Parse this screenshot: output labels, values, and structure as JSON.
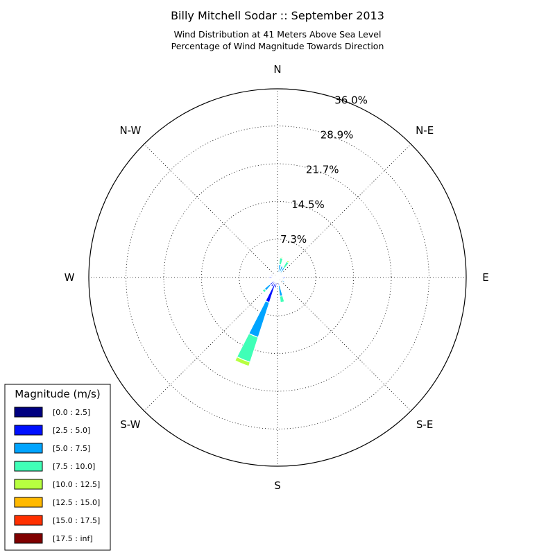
{
  "chart_data": {
    "type": "windrose",
    "title": "Billy Mitchell Sodar :: September 2013",
    "subtitle_lines": [
      "Wind Distribution at 41 Meters Above Sea Level",
      "Percentage of Wind Magnitude Towards Direction"
    ],
    "directions": [
      "N",
      "N-E",
      "E",
      "S-E",
      "S",
      "S-W",
      "W",
      "N-W"
    ],
    "radial_tick_labels": [
      "7.3%",
      "14.5%",
      "21.7%",
      "28.9%",
      "36.0%"
    ],
    "radial_ticks": [
      7.3,
      14.5,
      21.7,
      28.9,
      36.0
    ],
    "rmax": 36.0,
    "legend": {
      "title": "Magnitude (m/s)",
      "placement": "bottom-left",
      "bins": [
        {
          "label": "[0.0 : 2.5]",
          "color": "#000080"
        },
        {
          "label": "[2.5 : 5.0]",
          "color": "#0010ff"
        },
        {
          "label": "[5.0 : 7.5]",
          "color": "#00a4ff"
        },
        {
          "label": "[7.5 : 10.0]",
          "color": "#40ffb7"
        },
        {
          "label": "[10.0 : 12.5]",
          "color": "#b7ff40"
        },
        {
          "label": "[12.5 : 15.0]",
          "color": "#ffb900"
        },
        {
          "label": "[15.0 : 17.5]",
          "color": "#ff3000"
        },
        {
          "label": "[17.5 : inf]",
          "color": "#800000"
        }
      ]
    },
    "sectors": [
      {
        "dir_deg": 0,
        "cumulative": [
          0.3,
          0.5,
          1.0,
          1.0,
          1.0,
          1.0,
          1.0,
          1.0
        ]
      },
      {
        "dir_deg": 11.25,
        "cumulative": [
          0.2,
          0.9,
          2.5,
          3.8,
          4.0,
          4.0,
          4.0,
          4.0
        ]
      },
      {
        "dir_deg": 22.5,
        "cumulative": [
          0.3,
          1.0,
          2.3,
          2.5,
          2.5,
          2.5,
          2.5,
          2.5
        ]
      },
      {
        "dir_deg": 33.75,
        "cumulative": [
          0.2,
          1.0,
          2.2,
          3.5,
          3.8,
          3.9,
          3.9,
          3.9
        ]
      },
      {
        "dir_deg": 45,
        "cumulative": [
          0.3,
          0.8,
          1.2,
          1.2,
          1.2,
          1.2,
          1.2,
          1.2
        ]
      },
      {
        "dir_deg": 56.25,
        "cumulative": [
          0.3,
          0.7,
          1.0,
          1.0,
          1.0,
          1.0,
          1.0,
          1.0
        ]
      },
      {
        "dir_deg": 67.5,
        "cumulative": [
          0.2,
          0.4,
          0.5,
          0.5,
          0.5,
          0.5,
          0.5,
          0.5
        ]
      },
      {
        "dir_deg": 78.75,
        "cumulative": [
          0.4,
          1.0,
          1.0,
          1.0,
          1.0,
          1.0,
          1.0,
          1.0
        ]
      },
      {
        "dir_deg": 90,
        "cumulative": [
          0.3,
          1.5,
          1.5,
          1.5,
          1.5,
          1.5,
          1.5,
          1.5
        ]
      },
      {
        "dir_deg": 101.25,
        "cumulative": [
          0.3,
          1.0,
          1.3,
          1.3,
          1.3,
          1.3,
          1.3,
          1.3
        ]
      },
      {
        "dir_deg": 112.5,
        "cumulative": [
          0.3,
          0.8,
          1.2,
          1.2,
          1.2,
          1.2,
          1.2,
          1.2
        ]
      },
      {
        "dir_deg": 123.75,
        "cumulative": [
          0.3,
          0.9,
          1.6,
          1.6,
          1.6,
          1.6,
          1.6,
          1.6
        ]
      },
      {
        "dir_deg": 135,
        "cumulative": [
          0.2,
          0.4,
          0.5,
          0.5,
          0.5,
          0.5,
          0.5,
          0.5
        ]
      },
      {
        "dir_deg": 146.25,
        "cumulative": [
          0.2,
          0.4,
          0.4,
          0.4,
          0.4,
          0.4,
          0.4,
          0.4
        ]
      },
      {
        "dir_deg": 157.5,
        "cumulative": [
          0.2,
          0.4,
          0.4,
          0.4,
          0.4,
          0.4,
          0.4,
          0.4
        ]
      },
      {
        "dir_deg": 168.75,
        "cumulative": [
          0.2,
          1.5,
          3.6,
          4.8,
          4.8,
          4.8,
          4.8,
          4.8
        ]
      },
      {
        "dir_deg": 180,
        "cumulative": [
          0.2,
          0.5,
          0.5,
          0.5,
          0.5,
          0.5,
          0.5,
          0.5
        ]
      },
      {
        "dir_deg": 191.25,
        "cumulative": [
          0.3,
          2.0,
          2.0,
          2.0,
          2.0,
          2.0,
          2.0,
          2.0
        ]
      },
      {
        "dir_deg": 202.5,
        "cumulative": [
          0.3,
          5.0,
          12.0,
          17.0,
          17.8,
          17.8,
          17.8,
          17.8
        ]
      },
      {
        "dir_deg": 213.75,
        "cumulative": [
          0.3,
          2.0,
          2.0,
          2.0,
          2.0,
          2.0,
          2.0,
          2.0
        ]
      },
      {
        "dir_deg": 225,
        "cumulative": [
          0.3,
          2.0,
          3.3,
          3.8,
          3.8,
          3.8,
          3.8,
          3.8
        ]
      },
      {
        "dir_deg": 236.25,
        "cumulative": [
          0.3,
          1.0,
          1.0,
          1.0,
          1.0,
          1.0,
          1.0,
          1.0
        ]
      },
      {
        "dir_deg": 247.5,
        "cumulative": [
          0.3,
          0.6,
          0.6,
          0.6,
          0.6,
          0.6,
          0.6,
          0.6
        ]
      },
      {
        "dir_deg": 258.75,
        "cumulative": [
          0.3,
          1.0,
          1.0,
          1.0,
          1.0,
          1.0,
          1.0,
          1.0
        ]
      },
      {
        "dir_deg": 270,
        "cumulative": [
          0.3,
          1.6,
          1.6,
          1.6,
          1.6,
          1.6,
          1.6,
          1.6
        ]
      },
      {
        "dir_deg": 281.25,
        "cumulative": [
          0.3,
          0.9,
          1.1,
          1.1,
          1.1,
          1.1,
          1.1,
          1.1
        ]
      },
      {
        "dir_deg": 292.5,
        "cumulative": [
          0.3,
          1.3,
          1.3,
          1.3,
          1.3,
          1.3,
          1.3,
          1.3
        ]
      },
      {
        "dir_deg": 303.75,
        "cumulative": [
          0.3,
          0.6,
          0.6,
          0.6,
          0.6,
          0.6,
          0.6,
          0.6
        ]
      },
      {
        "dir_deg": 315,
        "cumulative": [
          0.2,
          0.5,
          0.5,
          0.5,
          0.5,
          0.5,
          0.5,
          0.5
        ]
      },
      {
        "dir_deg": 326.25,
        "cumulative": [
          0.2,
          0.4,
          0.4,
          0.4,
          0.4,
          0.4,
          0.4,
          0.4
        ]
      },
      {
        "dir_deg": 337.5,
        "cumulative": [
          0.2,
          0.4,
          0.4,
          0.4,
          0.4,
          0.4,
          0.4,
          0.4
        ]
      },
      {
        "dir_deg": 348.75,
        "cumulative": [
          0.2,
          0.5,
          0.5,
          0.5,
          0.5,
          0.5,
          0.5,
          0.5
        ]
      }
    ],
    "grid": true
  }
}
